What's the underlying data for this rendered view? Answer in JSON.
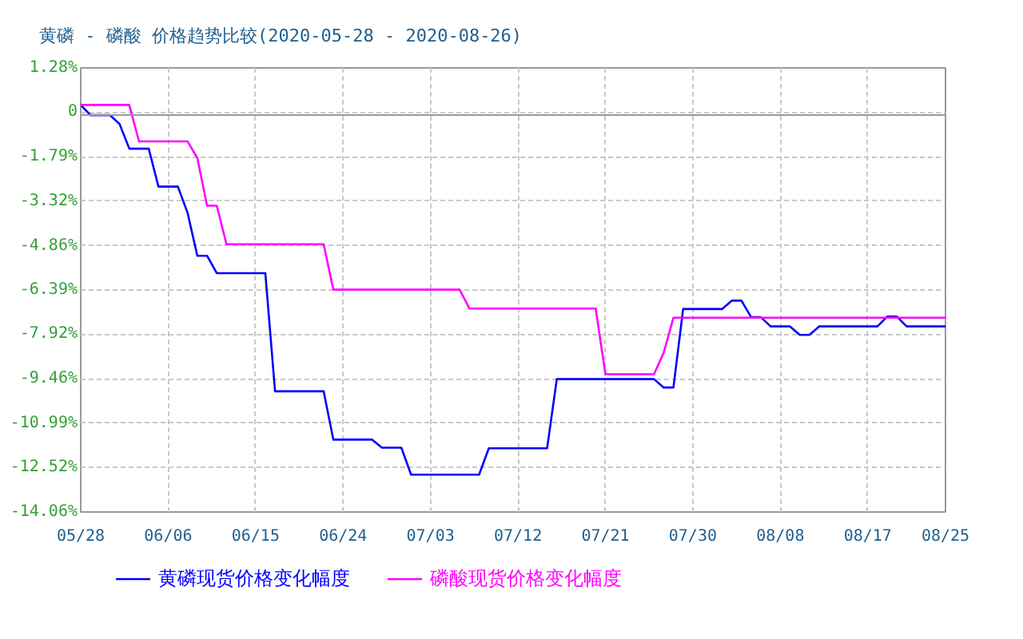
{
  "chart_data": {
    "type": "line",
    "title": "黄磷 - 磷酸 价格趋势比较(2020-05-28 - 2020-08-26)",
    "xlim": [
      "2020-05-28",
      "2020-08-25"
    ],
    "xticks": [
      {
        "value": "2020-05-28",
        "label": "05/28"
      },
      {
        "value": "2020-06-06",
        "label": "06/06"
      },
      {
        "value": "2020-06-15",
        "label": "06/15"
      },
      {
        "value": "2020-06-24",
        "label": "06/24"
      },
      {
        "value": "2020-07-03",
        "label": "07/03"
      },
      {
        "value": "2020-07-12",
        "label": "07/12"
      },
      {
        "value": "2020-07-21",
        "label": "07/21"
      },
      {
        "value": "2020-07-30",
        "label": "07/30"
      },
      {
        "value": "2020-08-08",
        "label": "08/08"
      },
      {
        "value": "2020-08-17",
        "label": "08/17"
      },
      {
        "value": "2020-08-25",
        "label": "08/25"
      }
    ],
    "ylim": [
      -14.06,
      1.28
    ],
    "yticks": [
      {
        "value": 1.28,
        "label": "1.28%"
      },
      {
        "value": -0.25,
        "label": "0"
      },
      {
        "value": -1.79,
        "label": "-1.79%"
      },
      {
        "value": -3.32,
        "label": "-3.32%"
      },
      {
        "value": -4.86,
        "label": "-4.86%"
      },
      {
        "value": -6.39,
        "label": "-6.39%"
      },
      {
        "value": -7.92,
        "label": "-7.92%"
      },
      {
        "value": -9.46,
        "label": "-9.46%"
      },
      {
        "value": -10.99,
        "label": "-10.99%"
      },
      {
        "value": -12.52,
        "label": "-12.52%"
      },
      {
        "value": -14.06,
        "label": "-14.06%"
      }
    ],
    "grid": true,
    "legend": "bottom",
    "ref_lines": [
      {
        "axis": "y",
        "value": -0.35,
        "color": "#999999"
      }
    ],
    "series": [
      {
        "name": "黄磷现货价格变化幅度",
        "color": "#0000ff",
        "x": [
          "2020-05-28",
          "2020-05-29",
          "2020-05-31",
          "2020-06-01",
          "2020-06-02",
          "2020-06-04",
          "2020-06-05",
          "2020-06-07",
          "2020-06-08",
          "2020-06-09",
          "2020-06-10",
          "2020-06-11",
          "2020-06-16",
          "2020-06-17",
          "2020-06-22",
          "2020-06-23",
          "2020-06-27",
          "2020-06-28",
          "2020-06-30",
          "2020-07-01",
          "2020-07-08",
          "2020-07-09",
          "2020-07-15",
          "2020-07-16",
          "2020-07-26",
          "2020-07-27",
          "2020-07-28",
          "2020-07-29",
          "2020-08-02",
          "2020-08-03",
          "2020-08-04",
          "2020-08-05",
          "2020-08-06",
          "2020-08-07",
          "2020-08-09",
          "2020-08-10",
          "2020-08-11",
          "2020-08-12",
          "2020-08-18",
          "2020-08-19",
          "2020-08-20",
          "2020-08-21",
          "2020-08-25"
        ],
        "values": [
          0,
          -0.35,
          -0.35,
          -0.66,
          -1.51,
          -1.51,
          -2.82,
          -2.82,
          -3.73,
          -5.21,
          -5.21,
          -5.81,
          -5.81,
          -9.89,
          -9.89,
          -11.56,
          -11.56,
          -11.84,
          -11.84,
          -12.77,
          -12.77,
          -11.86,
          -11.86,
          -9.47,
          -9.47,
          -9.76,
          -9.76,
          -7.05,
          -7.05,
          -6.76,
          -6.76,
          -7.33,
          -7.33,
          -7.65,
          -7.65,
          -7.94,
          -7.94,
          -7.65,
          -7.65,
          -7.31,
          -7.31,
          -7.65,
          -7.65
        ]
      },
      {
        "name": "磷酸现货价格变化幅度",
        "color": "#ff00ff",
        "x": [
          "2020-05-28",
          "2020-06-02",
          "2020-06-03",
          "2020-06-08",
          "2020-06-09",
          "2020-06-10",
          "2020-06-11",
          "2020-06-12",
          "2020-06-22",
          "2020-06-23",
          "2020-07-06",
          "2020-07-07",
          "2020-07-20",
          "2020-07-21",
          "2020-07-26",
          "2020-07-27",
          "2020-07-28",
          "2020-08-25"
        ],
        "values": [
          0,
          0,
          -1.26,
          -1.26,
          -1.83,
          -3.48,
          -3.48,
          -4.81,
          -4.81,
          -6.38,
          -6.38,
          -7.03,
          -7.03,
          -9.3,
          -9.3,
          -8.56,
          -7.35,
          -7.35
        ]
      }
    ]
  }
}
